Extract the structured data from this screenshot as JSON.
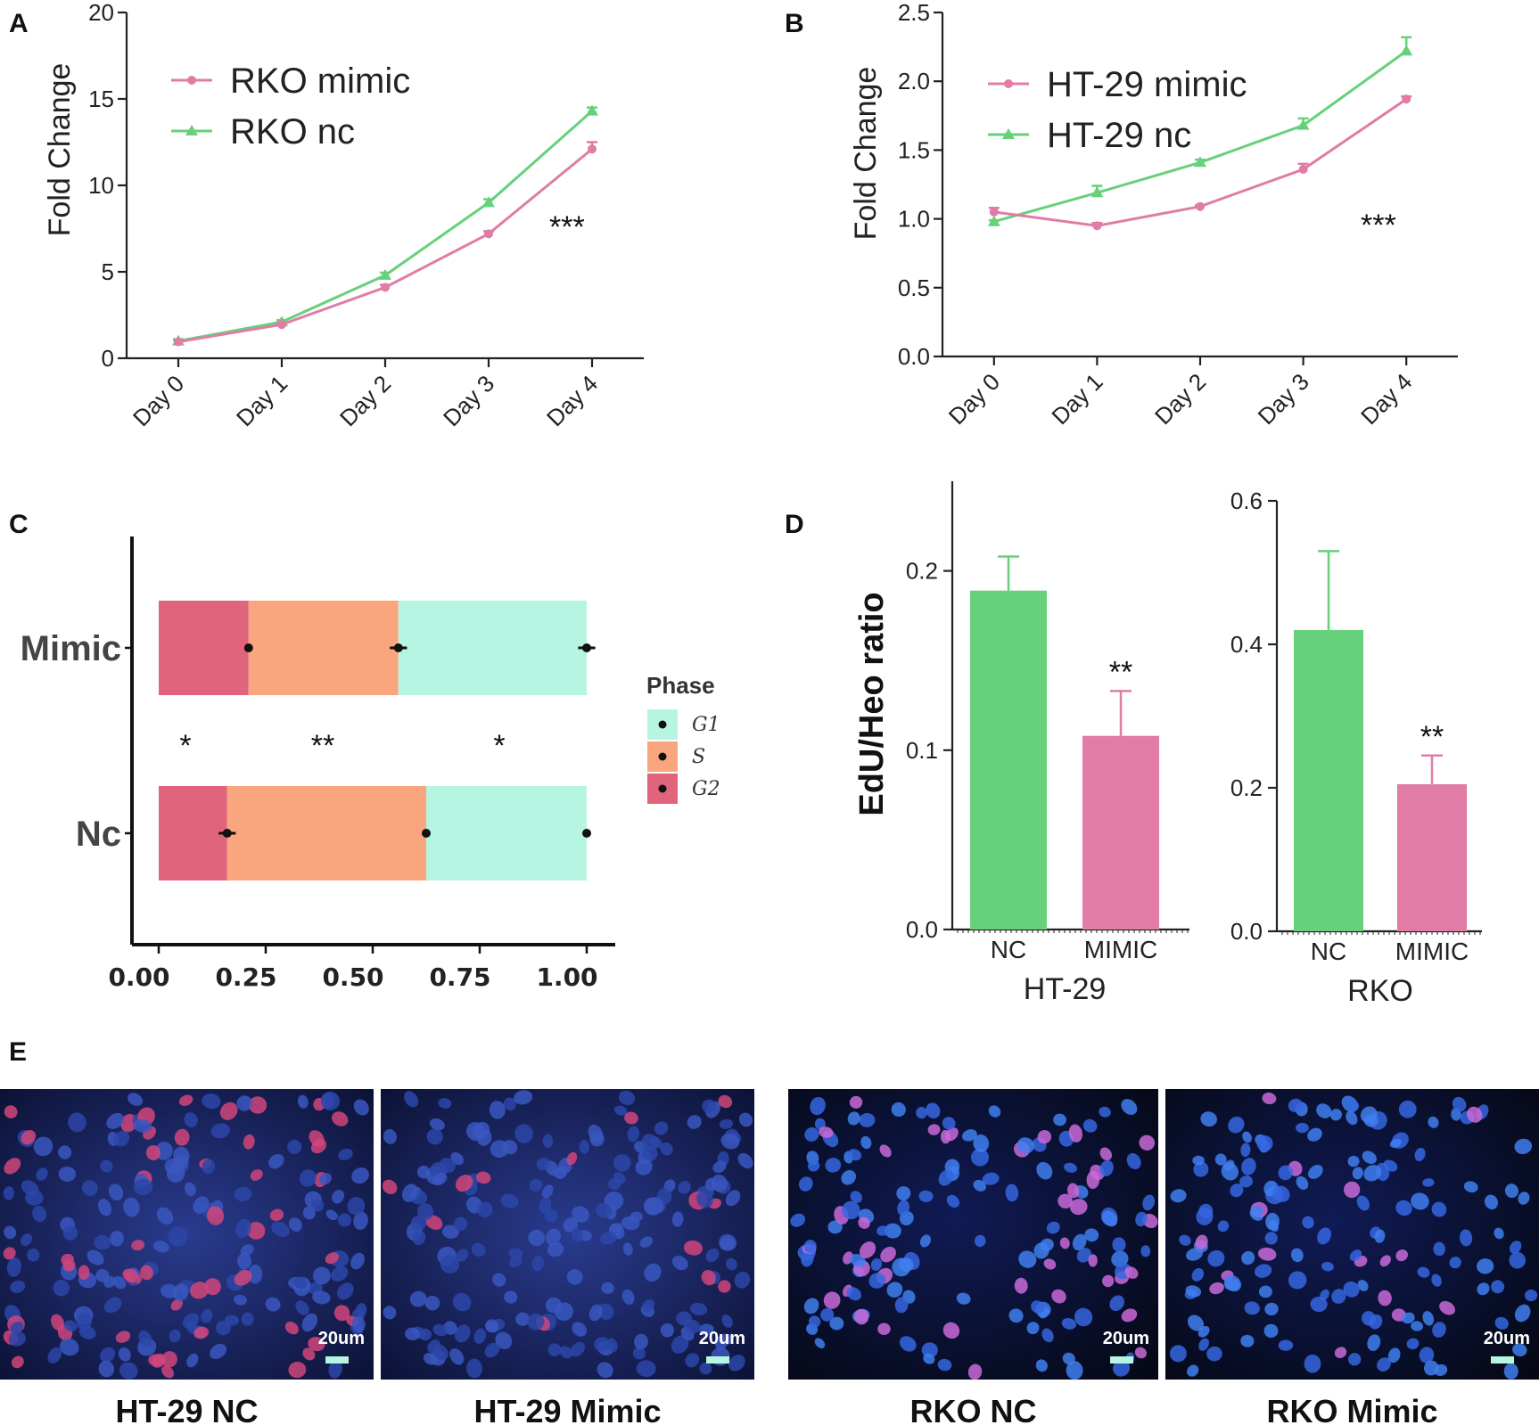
{
  "colors": {
    "mimic": "#e07ca6",
    "nc": "#66d17a",
    "g1": "#b6f5e1",
    "s": "#f9a67f",
    "g2": "#e0647c"
  },
  "panels": {
    "a": "A",
    "b": "B",
    "c": "C",
    "d": "D",
    "e": "E"
  },
  "chart_data": [
    {
      "id": "A",
      "type": "line",
      "title": "",
      "xlabel": "",
      "ylabel": "Fold Change",
      "categories": [
        "Day 0",
        "Day 1",
        "Day 2",
        "Day 3",
        "Day 4"
      ],
      "ylim": [
        0,
        20
      ],
      "yticks": [
        "0",
        "5",
        "10",
        "15",
        "20"
      ],
      "series": [
        {
          "name": "RKO mimic",
          "values": [
            0.95,
            1.95,
            4.1,
            7.2,
            12.1
          ],
          "errors": [
            0.1,
            0.1,
            0.15,
            0.15,
            0.4
          ]
        },
        {
          "name": "RKO nc",
          "values": [
            1.0,
            2.1,
            4.8,
            9.0,
            14.3
          ],
          "errors": [
            0.1,
            0.1,
            0.15,
            0.2,
            0.2
          ]
        }
      ],
      "annotation": "***"
    },
    {
      "id": "B",
      "type": "line",
      "title": "",
      "xlabel": "",
      "ylabel": "Fold Change",
      "categories": [
        "Day 0",
        "Day 1",
        "Day 2",
        "Day 3",
        "Day 4"
      ],
      "ylim": [
        0,
        2.5
      ],
      "yticks": [
        "0.0",
        "0.5",
        "1.0",
        "1.5",
        "2.0",
        "2.5"
      ],
      "series": [
        {
          "name": "HT-29 mimic",
          "values": [
            1.05,
            0.95,
            1.09,
            1.36,
            1.87
          ],
          "errors": [
            0.03,
            0.02,
            0.01,
            0.04,
            0.02
          ]
        },
        {
          "name": "HT-29 nc",
          "values": [
            0.98,
            1.19,
            1.41,
            1.68,
            2.22
          ],
          "errors": [
            0.01,
            0.05,
            0.02,
            0.05,
            0.1
          ]
        }
      ],
      "annotation": "***"
    },
    {
      "id": "C",
      "type": "bar",
      "orientation": "horizontal-stacked",
      "xlim": [
        0,
        1
      ],
      "xticks": [
        "0.00",
        "0.25",
        "0.50",
        "0.75",
        "1.00"
      ],
      "categories": [
        "Mimic",
        "Nc"
      ],
      "legend_title": "Phase",
      "series": [
        {
          "name": "G2",
          "values": [
            0.21,
            0.16
          ]
        },
        {
          "name": "S",
          "values": [
            0.35,
            0.465
          ]
        },
        {
          "name": "G1",
          "values": [
            0.44,
            0.375
          ]
        }
      ],
      "significance": [
        "*",
        "**",
        "*"
      ]
    },
    {
      "id": "D-HT29",
      "type": "bar",
      "group_label": "HT-29",
      "ylabel": "EdU/Heo ratio",
      "categories": [
        "NC",
        "MIMIC"
      ],
      "values": [
        0.189,
        0.108
      ],
      "errors": [
        0.019,
        0.025
      ],
      "ylim": [
        0,
        0.25
      ],
      "yticks": [
        "0.0",
        "0.1",
        "0.2"
      ],
      "annotation": "**"
    },
    {
      "id": "D-RKO",
      "type": "bar",
      "group_label": "RKO",
      "categories": [
        "NC",
        "MIMIC"
      ],
      "values": [
        0.42,
        0.205
      ],
      "errors": [
        0.11,
        0.04
      ],
      "ylim": [
        0,
        0.6
      ],
      "yticks": [
        "0.0",
        "0.2",
        "0.4",
        "0.6"
      ],
      "annotation": "**"
    }
  ],
  "micrographs": [
    {
      "label": "HT-29 NC",
      "scale": "20um"
    },
    {
      "label": "HT-29 Mimic",
      "scale": "20um"
    },
    {
      "label": "RKO NC",
      "scale": "20um"
    },
    {
      "label": "RKO Mimic",
      "scale": "20um"
    }
  ]
}
